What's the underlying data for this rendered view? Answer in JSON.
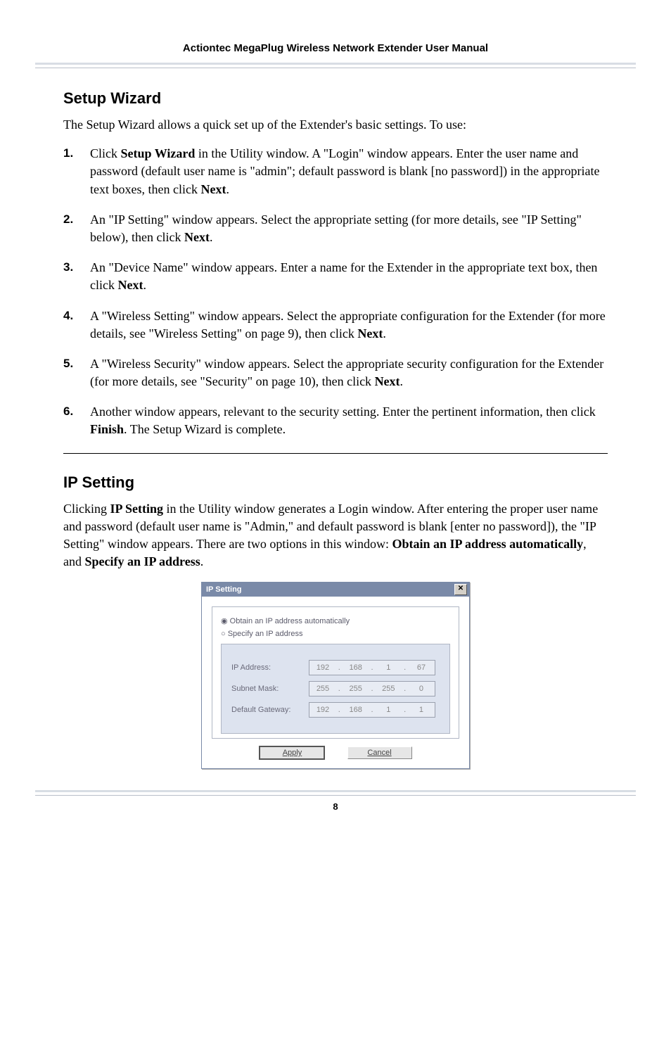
{
  "header": {
    "manual_title": "Actiontec MegaPlug Wireless Network Extender User Manual"
  },
  "section1": {
    "heading": "Setup Wizard",
    "intro": "The Setup Wizard allows a quick set up of the Extender's basic settings. To use:",
    "steps": [
      "Click <b>Setup Wizard</b> in the Utility window.  A \"Login\" window appears. Enter the user name and password (default user name is \"admin\"; default password is blank [no password]) in the appropriate text boxes, then click <b>Next</b>.",
      "An \"IP Setting\" window appears. Select the appropriate setting (for more details, see \"IP Setting\" below), then click <b>Next</b>.",
      "An \"Device Name\" window appears. Enter a name for the Extender in the appropriate text box, then click <b>Next</b>.",
      "A \"Wireless Setting\" window appears. Select the appropriate configuration for the Extender (for more details, see \"Wireless Setting\" on page 9), then click <b>Next</b>.",
      "A \"Wireless Security\" window appears. Select the appropriate security configuration for the Extender (for more details, see \"Security\" on page 10), then click <b>Next</b>.",
      "Another window appears, relevant to the security setting. Enter the pertinent information, then click <b>Finish</b>. The Setup Wizard is complete."
    ]
  },
  "section2": {
    "heading": "IP Setting",
    "intro": "Clicking <b>IP Setting</b> in the Utility window generates a Login window. After entering the proper user name and password (default user name is \"Admin,\" and default password is blank [enter no password]), the \"IP Setting\" window appears. There are two options in this window: <b>Obtain an IP address automatically</b>, and <b>Specify an IP address</b>."
  },
  "dialog": {
    "title": "IP Setting",
    "radio_auto": "Obtain an IP address automatically",
    "radio_specify": "Specify an IP address",
    "ip_label": "IP Address:",
    "ip_value": [
      "192",
      "168",
      "1",
      "67"
    ],
    "subnet_label": "Subnet Mask:",
    "subnet_value": [
      "255",
      "255",
      "255",
      "0"
    ],
    "gateway_label": "Default Gateway:",
    "gateway_value": [
      "192",
      "168",
      "1",
      "1"
    ],
    "apply": "Apply",
    "cancel": "Cancel"
  },
  "footer": {
    "page_number": "8"
  },
  "styling": {
    "body_font": "Georgia serif",
    "heading_font": "Arial sans-serif",
    "body_fontsize": 18,
    "heading_fontsize": 22,
    "rule_color": "#d8dde4",
    "dialog_titlebar_bg": "#7a8aa8",
    "dialog_inner_bg": "#dde3ef",
    "dialog_disabled_text": "#888888"
  }
}
